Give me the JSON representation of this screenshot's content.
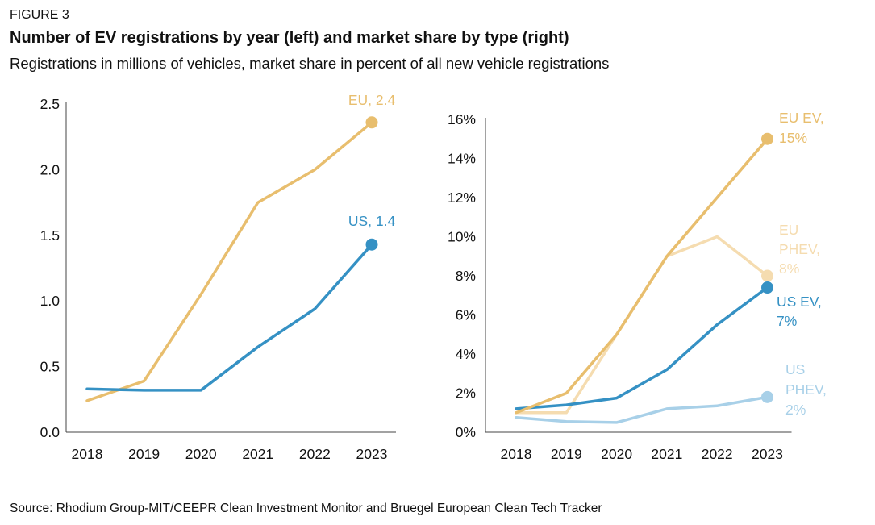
{
  "figure_label": "FIGURE 3",
  "title": "Number of EV registrations by year (left) and market share by type (right)",
  "subtitle": "Registrations in millions of vehicles, market share in percent of all new vehicle registrations",
  "source": "Source: Rhodium Group-MIT/CEEPR Clean Investment Monitor and Bruegel European Clean Tech Tracker",
  "colors": {
    "eu": "#E8BE6E",
    "us": "#3591C4",
    "eu_phev": "#F5DCB0",
    "us_phev": "#A8D0E8",
    "axis": "#444444"
  },
  "chart_data": [
    {
      "type": "line",
      "categories": [
        "2018",
        "2019",
        "2020",
        "2021",
        "2022",
        "2023"
      ],
      "ylim": [
        0,
        2.5
      ],
      "yticks": [
        0,
        0.5,
        1.0,
        1.5,
        2.0,
        2.5
      ],
      "ytick_labels": [
        "0.0",
        "0.5",
        "1.0",
        "1.5",
        "2.0",
        "2.5"
      ],
      "grid": false,
      "series": [
        {
          "key": "eu",
          "values": [
            0.24,
            0.39,
            1.05,
            1.75,
            2.0,
            2.36
          ],
          "label": "EU, 2.4",
          "color": "#E8BE6E"
        },
        {
          "key": "us",
          "values": [
            0.33,
            0.32,
            0.32,
            0.65,
            0.94,
            1.43
          ],
          "label": "US, 1.4",
          "color": "#3591C4"
        }
      ]
    },
    {
      "type": "line",
      "categories": [
        "2018",
        "2019",
        "2020",
        "2021",
        "2022",
        "2023"
      ],
      "ylim": [
        0,
        16
      ],
      "yticks": [
        0,
        2,
        4,
        6,
        8,
        10,
        12,
        14,
        16
      ],
      "ytick_labels": [
        "0%",
        "2%",
        "4%",
        "6%",
        "8%",
        "10%",
        "12%",
        "14%",
        "16%"
      ],
      "grid": false,
      "series": [
        {
          "key": "eu_ev",
          "values": [
            1.0,
            2.0,
            5.0,
            9.0,
            12.0,
            15.0
          ],
          "label": [
            "EU EV,",
            "15%"
          ],
          "color": "#E8BE6E"
        },
        {
          "key": "eu_phev",
          "values": [
            1.0,
            1.0,
            5.0,
            9.0,
            10.0,
            8.0
          ],
          "label": [
            "EU",
            "PHEV,",
            "8%"
          ],
          "color": "#F5DCB0"
        },
        {
          "key": "us_ev",
          "values": [
            1.2,
            1.4,
            1.75,
            3.2,
            5.5,
            7.4
          ],
          "label": [
            "US EV,",
            "7%"
          ],
          "color": "#3591C4"
        },
        {
          "key": "us_phev",
          "values": [
            0.75,
            0.55,
            0.5,
            1.2,
            1.35,
            1.8
          ],
          "label": [
            "US",
            "PHEV,",
            "2%"
          ],
          "color": "#A8D0E8"
        }
      ]
    }
  ]
}
